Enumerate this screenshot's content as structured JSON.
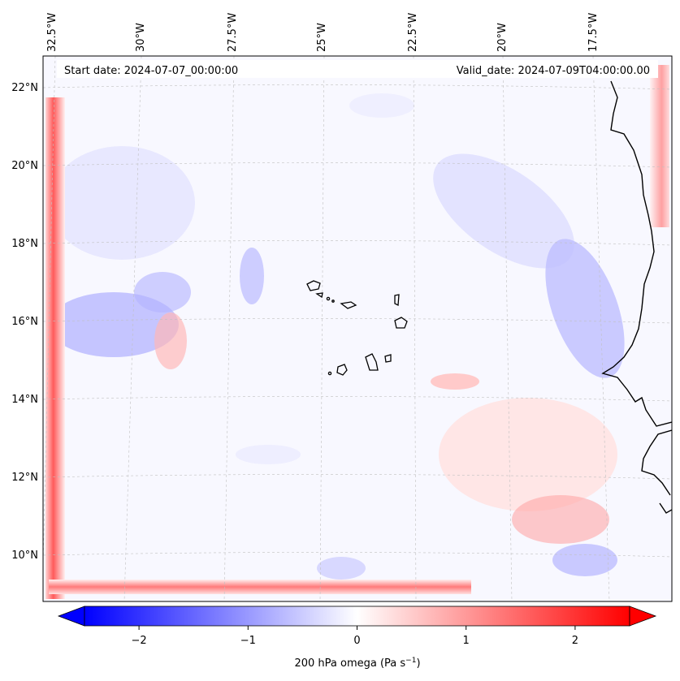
{
  "header": {
    "start_date": "Start date: 2024-07-07_00:00:00",
    "valid_date": "Valid_date: 2024-07-09T04:00:00.00"
  },
  "axes": {
    "lon_labels": [
      "32.5°W",
      "30°W",
      "27.5°W",
      "25°W",
      "22.5°W",
      "20°W",
      "17.5°W"
    ],
    "lat_labels": [
      "22°N",
      "20°N",
      "18°N",
      "16°N",
      "14°N",
      "12°N",
      "10°N"
    ]
  },
  "colorbar": {
    "label_prefix": "200 hPa omega (Pa s",
    "label_exp": "−1",
    "label_suffix": ")",
    "ticks": [
      {
        "value": -2,
        "text": "−2"
      },
      {
        "value": -1,
        "text": "−1"
      },
      {
        "value": 0,
        "text": "0"
      },
      {
        "value": 1,
        "text": "1"
      },
      {
        "value": 2,
        "text": "2"
      }
    ],
    "range": [
      -2.5,
      2.5
    ],
    "neg_color": "#0000ff",
    "mid_color": "#ffffff",
    "pos_color": "#ff0000"
  },
  "map": {
    "field": "200 hPa omega",
    "background_color": "#f8f8ff",
    "coastline_color": "#000000",
    "islands": "Cabo Verde"
  }
}
